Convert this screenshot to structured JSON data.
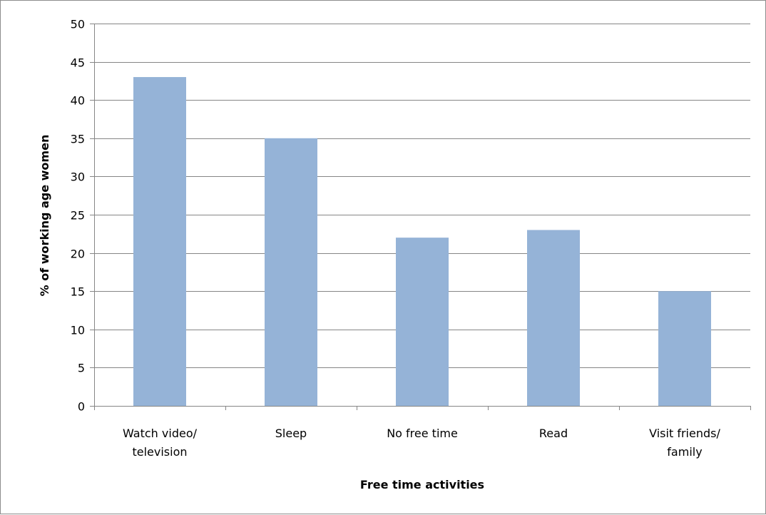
{
  "chart_data": {
    "type": "bar",
    "categories": [
      [
        "Watch video/",
        "television"
      ],
      [
        "Sleep"
      ],
      [
        "No free time"
      ],
      [
        "Read"
      ],
      [
        "Visit friends/",
        "family"
      ]
    ],
    "values": [
      43,
      35,
      22,
      23,
      15
    ],
    "title": "",
    "xlabel": "Free time activities",
    "ylabel": "% of working age women",
    "ylim": [
      0,
      50
    ],
    "yticks": [
      0,
      5,
      10,
      15,
      20,
      25,
      30,
      35,
      40,
      45,
      50
    ],
    "grid": true,
    "legend": "none",
    "bar_color": "#95b3d7",
    "grid_color": "#868686",
    "axis_color": "#868686"
  }
}
